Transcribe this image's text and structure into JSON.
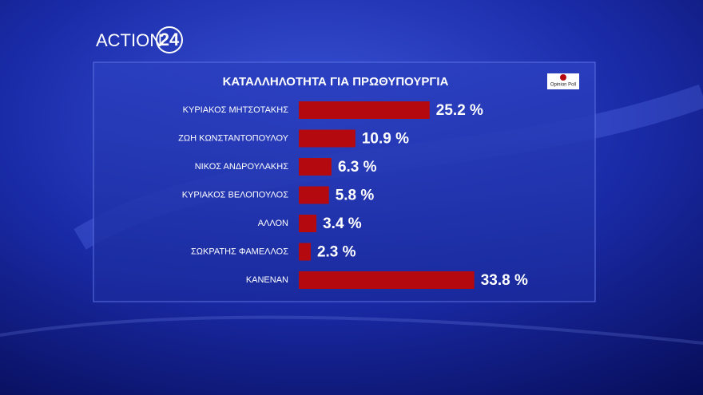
{
  "branding": {
    "channel": "ACTION",
    "channel_number": "24",
    "source": "Opinion Poll"
  },
  "chart_data": {
    "type": "hbar",
    "title": "ΚΑΤΑΛΛΗΛΟΤΗΤΑ ΓΙΑ ΠΡΩΘΥΠΟΥΡΓΙΑ",
    "categories": [
      "ΚΥΡΙΑΚΟΣ ΜΗΤΣΟΤΑΚΗΣ",
      "ΖΩΗ ΚΩΝΣΤΑΝΤΟΠΟΥΛΟΥ",
      "ΝΙΚΟΣ ΑΝΔΡΟΥΛΑΚΗΣ",
      "ΚΥΡΙΑΚΟΣ ΒΕΛΟΠΟΥΛΟΣ",
      "ΑΛΛΟΝ",
      "ΣΩΚΡΑΤΗΣ ΦΑΜΕΛΛΟΣ",
      "ΚΑΝΕΝΑΝ"
    ],
    "values": [
      25.2,
      10.9,
      6.3,
      5.8,
      3.4,
      2.3,
      33.8
    ],
    "value_labels": [
      "25.2 %",
      "10.9 %",
      "6.3 %",
      "5.8 %",
      "3.4 %",
      "2.3 %",
      "33.8 %"
    ],
    "color": "#b3090f"
  }
}
